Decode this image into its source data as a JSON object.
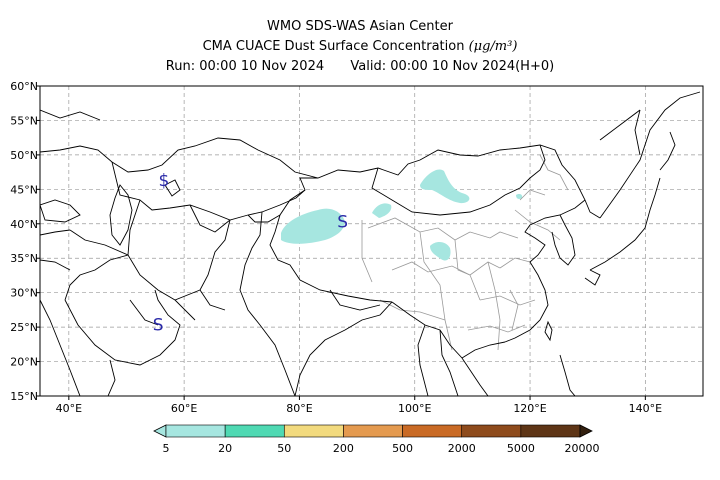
{
  "header": {
    "line1": "WMO SDS-WAS Asian Center",
    "line2": "CMA CUACE Dust Surface Concentration",
    "unit": "(μg/m³)",
    "run_prefix": "Run:",
    "run_time": "00:00 10 Nov 2024",
    "valid_prefix": "Valid:",
    "valid_time": "00:00 10 Nov 2024(H+0)"
  },
  "map": {
    "lon_range": [
      35,
      150
    ],
    "lat_range": [
      15,
      60
    ],
    "lon_ticks": [
      "40°E",
      "60°E",
      "80°E",
      "100°E",
      "120°E",
      "140°E"
    ],
    "lat_ticks": [
      "15°N",
      "20°N",
      "25°N",
      "30°N",
      "35°N",
      "40°N",
      "45°N",
      "50°N",
      "55°N",
      "60°N"
    ],
    "grid": true,
    "markers": [
      {
        "symbol": "$",
        "lon": 56.5,
        "lat": 46.5
      },
      {
        "symbol": "S",
        "lon": 87.5,
        "lat": 40.5
      },
      {
        "symbol": "S",
        "lon": 55.5,
        "lat": 25.5
      }
    ],
    "dust_color": "#a6e6e0"
  },
  "colorbar": {
    "labels": [
      "5",
      "20",
      "50",
      "200",
      "500",
      "2000",
      "5000",
      "20000"
    ],
    "colors": [
      "#a6e6e0",
      "#4fd9b3",
      "#f2da7e",
      "#e49a4f",
      "#c96a25",
      "#8e4b1c",
      "#5e3516",
      "#33200f"
    ]
  }
}
